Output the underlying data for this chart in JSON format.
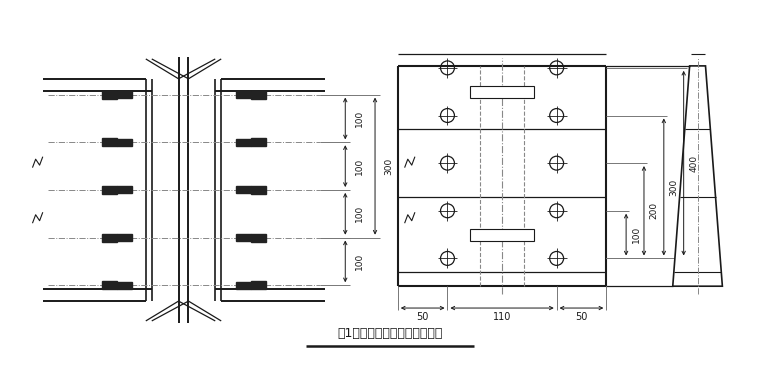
{
  "bg_color": "#ffffff",
  "line_color": "#1a1a1a",
  "gray_color": "#777777",
  "dash_color": "#888888",
  "caption": "图1：以底排螺栓中心为中和轴",
  "caption_fontsize": 9,
  "fig_width": 7.6,
  "fig_height": 3.65,
  "dpi": 100
}
